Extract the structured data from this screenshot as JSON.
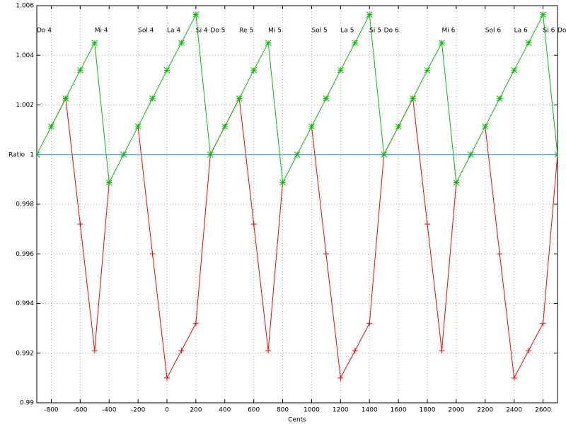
{
  "chart_data": {
    "type": "line",
    "xlabel": "Cents",
    "ylabel": "Ratio",
    "x": [
      -900,
      -800,
      -700,
      -600,
      -500,
      -400,
      -300,
      -200,
      -100,
      0,
      100,
      200,
      300,
      400,
      500,
      600,
      700,
      800,
      900,
      1000,
      1100,
      1200,
      1300,
      1400,
      1500,
      1600,
      1700,
      1800,
      1900,
      2000,
      2100,
      2200,
      2300,
      2400,
      2500,
      2600,
      2700
    ],
    "series": [
      {
        "color": "#ff0000",
        "marker": "plus",
        "values": [
          null,
          1.00113,
          1.00226,
          0.9972,
          0.9921,
          0.99887,
          null,
          1.00113,
          0.996,
          0.991,
          0.9921,
          0.9932,
          1.0,
          1.00113,
          1.00226,
          0.9972,
          0.9921,
          0.99887,
          null,
          1.00113,
          0.996,
          0.991,
          0.9921,
          0.9932,
          1.0,
          1.00113,
          1.00226,
          0.9972,
          0.9921,
          0.99887,
          null,
          1.00113,
          0.996,
          0.991,
          0.9921,
          0.9932,
          1.0
        ]
      },
      {
        "color": "#00c000",
        "marker": "star",
        "values": [
          1.0,
          1.00113,
          1.00226,
          1.0034,
          1.0045,
          0.99887,
          1.0,
          1.00113,
          1.00226,
          1.0034,
          1.0045,
          1.00564,
          1.0,
          1.00113,
          1.00226,
          1.0034,
          1.0045,
          0.99887,
          1.0,
          1.00113,
          1.00226,
          1.0034,
          1.0045,
          1.00564,
          1.0,
          1.00113,
          1.00226,
          1.0034,
          1.0045,
          0.99887,
          1.0,
          1.00113,
          1.00226,
          1.0034,
          1.0045,
          1.00564,
          1.0
        ]
      },
      {
        "color": "#3399dd",
        "marker": "none",
        "values": [
          1,
          1,
          1,
          1,
          1,
          1,
          1,
          1,
          1,
          1,
          1,
          1,
          1,
          1,
          1,
          1,
          1,
          1,
          1,
          1,
          1,
          1,
          1,
          1,
          1,
          1,
          1,
          1,
          1,
          1,
          1,
          1,
          1,
          1,
          1,
          1,
          1
        ]
      }
    ],
    "annotations": [
      {
        "text": "Do 4",
        "x": -900,
        "y": 1.005
      },
      {
        "text": "Mi 4",
        "x": -500,
        "y": 1.005
      },
      {
        "text": "Sol 4",
        "x": -200,
        "y": 1.005
      },
      {
        "text": "La 4",
        "x": 0,
        "y": 1.005
      },
      {
        "text": "Si 4",
        "x": 200,
        "y": 1.005
      },
      {
        "text": "Do 5",
        "x": 300,
        "y": 1.005
      },
      {
        "text": "Re 5",
        "x": 500,
        "y": 1.005
      },
      {
        "text": "Mi 5",
        "x": 700,
        "y": 1.005
      },
      {
        "text": "Sol 5",
        "x": 1000,
        "y": 1.005
      },
      {
        "text": "La 5",
        "x": 1200,
        "y": 1.005
      },
      {
        "text": "Si 5",
        "x": 1400,
        "y": 1.005
      },
      {
        "text": "Do 6",
        "x": 1500,
        "y": 1.005
      },
      {
        "text": "Mi 6",
        "x": 1900,
        "y": 1.005
      },
      {
        "text": "Sol 6",
        "x": 2200,
        "y": 1.005
      },
      {
        "text": "La 6",
        "x": 2400,
        "y": 1.005
      },
      {
        "text": "Si 6",
        "x": 2600,
        "y": 1.005
      },
      {
        "text": "Do",
        "x": 2700,
        "y": 1.005
      }
    ],
    "xlim": [
      -900,
      2700
    ],
    "xticks": [
      -800,
      -600,
      -400,
      -200,
      0,
      200,
      400,
      600,
      800,
      1000,
      1200,
      1400,
      1600,
      1800,
      2000,
      2200,
      2400,
      2600
    ],
    "ylim": [
      0.99,
      1.006
    ],
    "yticks": [
      0.99,
      0.992,
      0.994,
      0.996,
      0.998,
      1,
      1.002,
      1.004,
      1.006
    ],
    "grid": true
  }
}
